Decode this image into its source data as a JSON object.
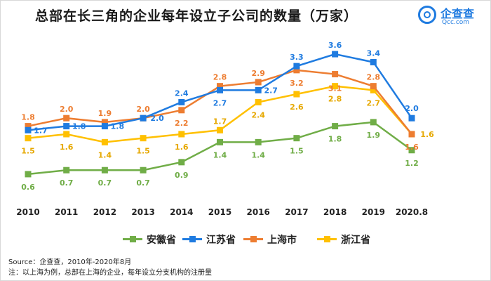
{
  "title": "总部在长三角的企业每年设立子公司的数量（万家）",
  "logo": {
    "name": "企查查",
    "sub": "Qcc.com"
  },
  "source": "Source：企查查，2010年-2020年8月",
  "note": "注：以上海为例，总部在上海的企业，每年设立分支机构的注册量",
  "colors": {
    "anhui": "#70ad47",
    "jiangsu": "#1f7be0",
    "shanghai": "#ed7d31",
    "zhejiang": "#ffc000"
  },
  "chart_data": {
    "type": "line",
    "title": "总部在长三角的企业每年设立子公司的数量（万家）",
    "xlabel": "",
    "ylabel": "",
    "ylim": [
      0.3,
      3.9
    ],
    "grid": false,
    "legend": "bottom",
    "categories": [
      "2010",
      "2011",
      "2012",
      "2013",
      "2014",
      "2015",
      "2016",
      "2017",
      "2018",
      "2019",
      "2020.8"
    ],
    "series": [
      {
        "key": "anhui",
        "name": "安徽省",
        "color": "#70ad47",
        "values": [
          0.6,
          0.7,
          0.7,
          0.7,
          0.9,
          1.4,
          1.4,
          1.5,
          1.8,
          1.9,
          1.2
        ]
      },
      {
        "key": "jiangsu",
        "name": "江苏省",
        "color": "#1f7be0",
        "values": [
          1.7,
          1.8,
          1.8,
          2.0,
          2.4,
          2.7,
          2.7,
          3.3,
          3.6,
          3.4,
          2.0
        ]
      },
      {
        "key": "shanghai",
        "name": "上海市",
        "color": "#ed7d31",
        "values": [
          1.8,
          2.0,
          1.9,
          2.0,
          2.2,
          2.8,
          2.9,
          3.2,
          3.1,
          2.8,
          1.6
        ]
      },
      {
        "key": "zhejiang",
        "name": "浙江省",
        "color": "#ffc000",
        "values": [
          1.5,
          1.6,
          1.4,
          1.5,
          1.6,
          1.7,
          2.4,
          2.6,
          2.8,
          2.7,
          1.6
        ]
      }
    ]
  }
}
